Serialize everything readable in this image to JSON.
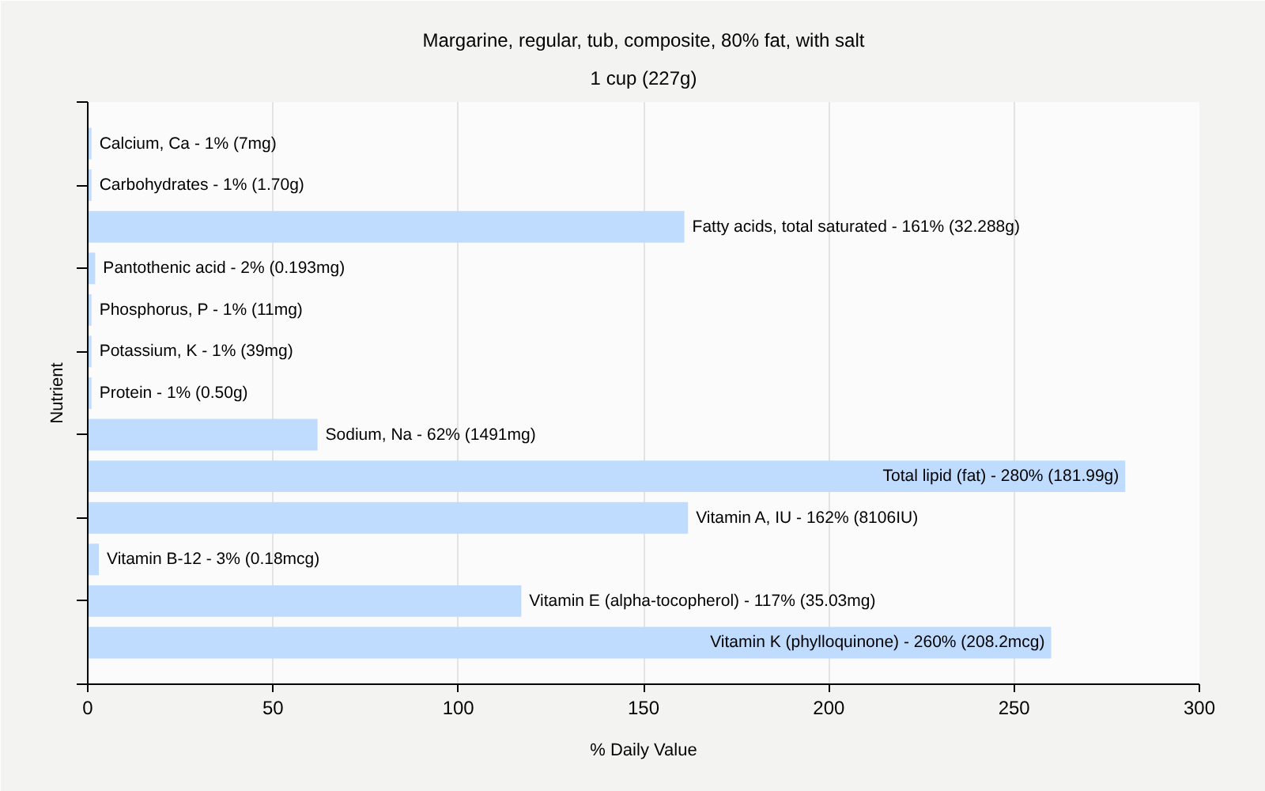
{
  "chart_data": {
    "type": "bar",
    "orientation": "horizontal",
    "title": "Margarine, regular, tub, composite, 80% fat, with salt",
    "subtitle": "1 cup (227g)",
    "xlabel": "% Daily Value",
    "ylabel": "Nutrient",
    "categories": [
      "Calcium, Ca - 1% (7mg)",
      "Carbohydrates - 1% (1.70g)",
      "Fatty acids, total saturated - 161% (32.288g)",
      "Pantothenic acid - 2% (0.193mg)",
      "Phosphorus, P - 1% (11mg)",
      "Potassium, K - 1% (39mg)",
      "Protein - 1% (0.50g)",
      "Sodium, Na - 62% (1491mg)",
      "Total lipid (fat) - 280% (181.99g)",
      "Vitamin A, IU - 162% (8106IU)",
      "Vitamin B-12 - 3% (0.18mcg)",
      "Vitamin E (alpha-tocopherol) - 117% (35.03mg)",
      "Vitamin K (phylloquinone) - 260% (208.2mcg)"
    ],
    "values": [
      1,
      1,
      161,
      2,
      1,
      1,
      1,
      62,
      280,
      162,
      3,
      117,
      260
    ],
    "color": "#bfdbfd",
    "xlim": [
      0,
      300
    ],
    "xticks": [
      0,
      50,
      100,
      150,
      200,
      250,
      300
    ],
    "grid": "x",
    "tick_labels": "x"
  }
}
